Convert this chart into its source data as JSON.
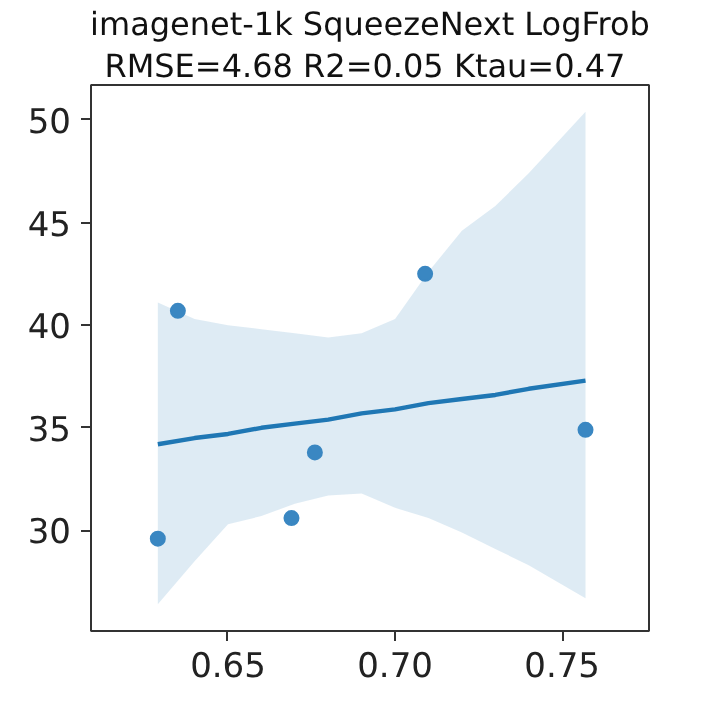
{
  "chart_data": {
    "type": "scatter",
    "title": "imagenet-1k SqueezeNext LogFrob",
    "subtitle": "RMSE=4.68  R2=0.05 Ktau=0.47",
    "xlim": [
      0.609,
      0.776
    ],
    "xticks": [
      {
        "value": 0.65,
        "label": "0.65"
      },
      {
        "value": 0.7,
        "label": "0.70"
      },
      {
        "value": 0.75,
        "label": "0.75"
      }
    ],
    "ylim": [
      25.1,
      51.7
    ],
    "yticks": [
      30,
      35,
      40,
      45,
      50
    ],
    "grid": false,
    "series": [
      {
        "color": "#3a87c2",
        "marker": "circle",
        "x": [
          0.629,
          0.635,
          0.669,
          0.676,
          0.709,
          0.757
        ],
        "values": [
          29.6,
          40.7,
          30.6,
          33.8,
          42.5,
          34.9
        ]
      },
      {
        "type": "line",
        "marker": "none",
        "color": "#1f77b4",
        "x": [
          0.629,
          0.64,
          0.65,
          0.66,
          0.67,
          0.68,
          0.69,
          0.7,
          0.71,
          0.72,
          0.73,
          0.74,
          0.757
        ],
        "values": [
          34.2,
          34.5,
          34.7,
          35.0,
          35.2,
          35.4,
          35.7,
          35.9,
          36.2,
          36.4,
          36.6,
          36.9,
          37.3
        ],
        "lower": [
          26.4,
          28.5,
          30.3,
          30.7,
          31.3,
          31.7,
          31.8,
          31.1,
          30.6,
          29.9,
          29.1,
          28.3,
          26.7
        ],
        "upper": [
          41.1,
          40.3,
          40.0,
          39.8,
          39.6,
          39.4,
          39.6,
          40.3,
          42.6,
          44.6,
          45.8,
          47.4,
          50.4
        ]
      }
    ]
  }
}
